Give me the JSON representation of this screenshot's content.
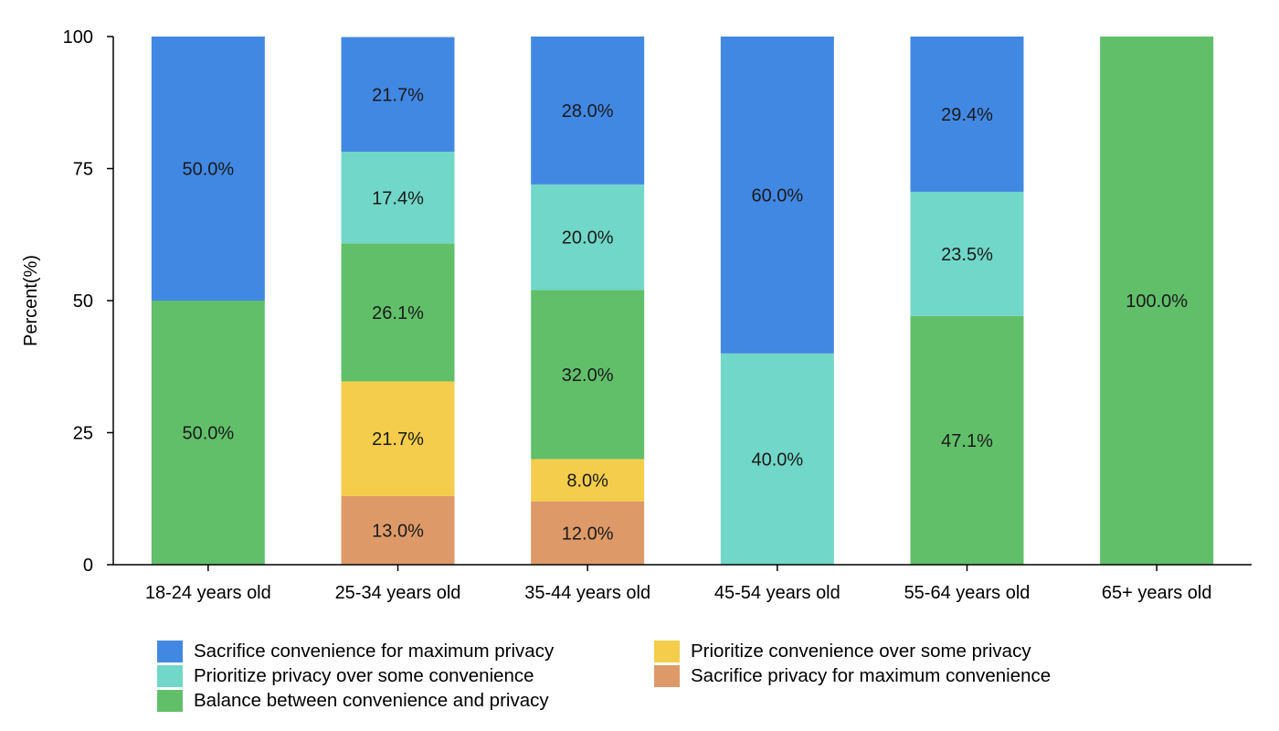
{
  "chart_data": {
    "type": "bar",
    "stacked": true,
    "title": "",
    "xlabel": "",
    "ylabel": "Percent(%)",
    "ylim": [
      0,
      100
    ],
    "yticks": [
      0,
      25,
      50,
      75,
      100
    ],
    "grid": false,
    "legend_position": "bottom",
    "categories": [
      "18-24 years old",
      "25-34 years old",
      "35-44 years old",
      "45-54 years old",
      "55-64 years old",
      "65+ years old"
    ],
    "series": [
      {
        "name": "Sacrifice privacy for maximum convenience",
        "color": "#dd9a68",
        "values": [
          0,
          13.0,
          12.0,
          0,
          0,
          0
        ]
      },
      {
        "name": "Prioritize convenience over some privacy",
        "color": "#f3cd4b",
        "values": [
          0,
          21.7,
          8.0,
          0,
          0,
          0
        ]
      },
      {
        "name": "Balance between convenience and privacy",
        "color": "#61bf6a",
        "values": [
          50.0,
          26.1,
          32.0,
          0,
          47.1,
          100.0
        ]
      },
      {
        "name": "Prioritize privacy over some convenience",
        "color": "#71d7c8",
        "values": [
          0,
          17.4,
          20.0,
          40.0,
          23.5,
          0
        ]
      },
      {
        "name": "Sacrifice convenience for maximum privacy",
        "color": "#4188e3",
        "values": [
          50.0,
          21.7,
          28.0,
          60.0,
          29.4,
          0
        ]
      }
    ],
    "legend_order": [
      4,
      3,
      2,
      1,
      0
    ]
  }
}
